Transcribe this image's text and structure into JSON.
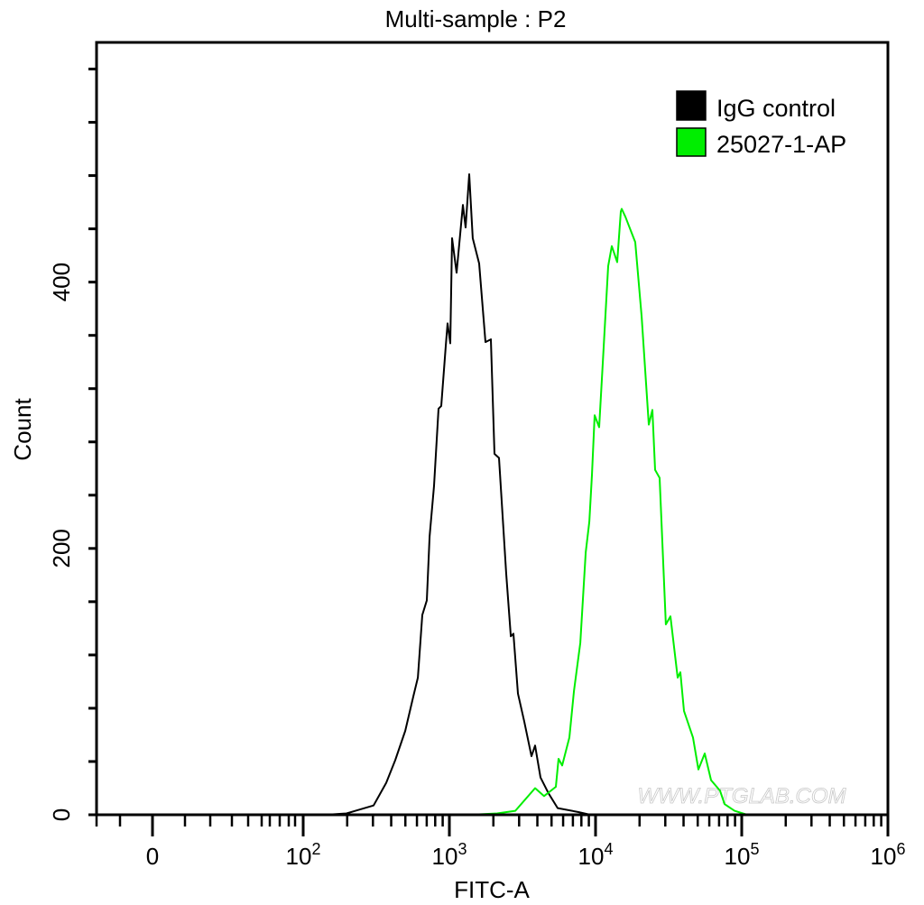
{
  "chart_data": {
    "type": "line",
    "title": "Multi-sample : P2",
    "xlabel": "FITC-A",
    "ylabel": "Count",
    "x_scale": "biexponential (log above 10^2)",
    "xlim": [
      -60,
      1000000
    ],
    "ylim": [
      0,
      580
    ],
    "grid": false,
    "legend_position": "top-right",
    "x_ticks": [
      {
        "value": 0,
        "base": "0",
        "exp": ""
      },
      {
        "value": 100,
        "base": "10",
        "exp": "2"
      },
      {
        "value": 1000,
        "base": "10",
        "exp": "3"
      },
      {
        "value": 10000,
        "base": "10",
        "exp": "4"
      },
      {
        "value": 100000,
        "base": "10",
        "exp": "5"
      },
      {
        "value": 1000000,
        "base": "10",
        "exp": "6"
      }
    ],
    "y_ticks": [
      0,
      200,
      400
    ],
    "watermark": "WWW.PTGLAB.COM",
    "series": [
      {
        "name": "IgG control",
        "color": "#000000",
        "x": [
          143,
          198,
          228,
          303,
          370,
          426,
          499,
          567,
          609,
          653,
          701,
          732,
          785,
          843,
          880,
          945,
          972,
          1014,
          1044,
          1120,
          1238,
          1292,
          1367,
          1446,
          1598,
          1766,
          1923,
          2035,
          2186,
          2449,
          2632,
          2744,
          2946,
          3253,
          3646,
          3857,
          4202,
          4775,
          5505,
          7637,
          9190
        ],
        "y": [
          0,
          1,
          3,
          7,
          24,
          41,
          63,
          89,
          103,
          150,
          161,
          209,
          247,
          305,
          307,
          352,
          369,
          354,
          433,
          407,
          458,
          441,
          481,
          433,
          414,
          355,
          357,
          271,
          268,
          181,
          134,
          136,
          91,
          70,
          44,
          52,
          28,
          16,
          5,
          2,
          0
        ]
      },
      {
        "name": "25027-1-AP",
        "color": "#00ee00",
        "x": [
          1387,
          2123,
          2825,
          3856,
          4444,
          5350,
          5580,
          5910,
          6625,
          7117,
          7860,
          8560,
          9060,
          9445,
          9860,
          10590,
          11200,
          12200,
          12910,
          14060,
          14890,
          15100,
          16000,
          18700,
          20660,
          23130,
          24490,
          25550,
          27420,
          30280,
          32520,
          36460,
          38040,
          40270,
          46430,
          50580,
          55870,
          61700,
          71120,
          76380,
          89270,
          108900
        ],
        "y": [
          0,
          1,
          3,
          20,
          14,
          21,
          42,
          37,
          58,
          93,
          129,
          197,
          220,
          255,
          300,
          291,
          339,
          412,
          427,
          415,
          453,
          455,
          449,
          430,
          374,
          293,
          304,
          259,
          253,
          143,
          149,
          103,
          107,
          78,
          58,
          34,
          46,
          26,
          18,
          8,
          3,
          0
        ]
      }
    ]
  }
}
